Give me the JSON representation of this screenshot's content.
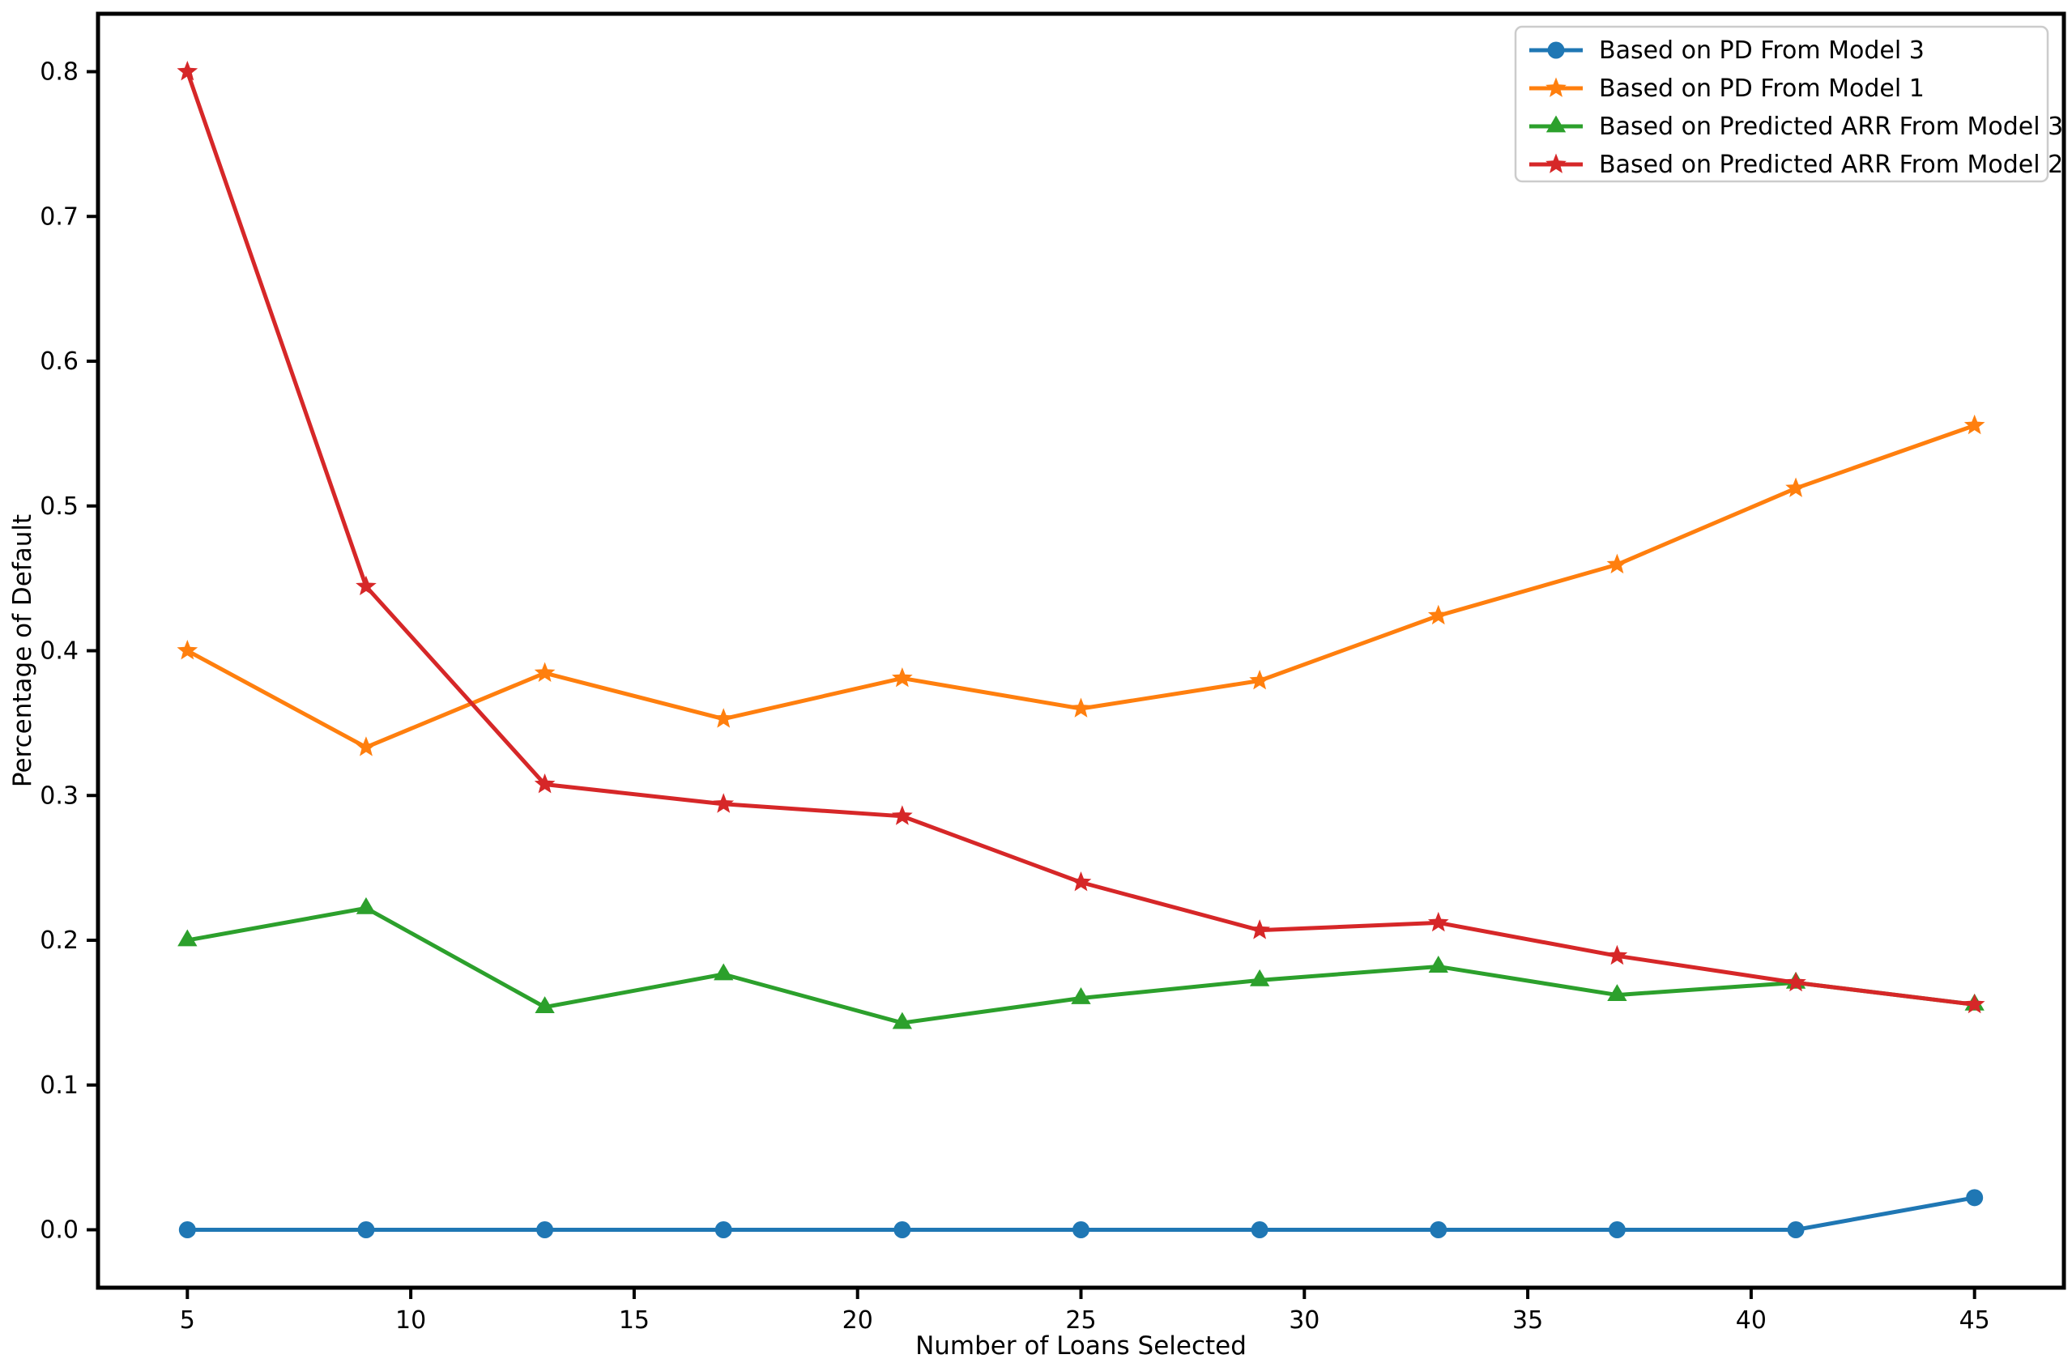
{
  "figure": {
    "background": "#ffffff"
  },
  "chart_data": {
    "type": "line",
    "title": "",
    "xlabel": "Number of Loans Selected",
    "ylabel": "Percentage of Default",
    "x": [
      5,
      9,
      13,
      17,
      21,
      25,
      29,
      33,
      37,
      41,
      45
    ],
    "series": [
      {
        "name": "Based on PD From Model 3",
        "color": "#1f77b4",
        "marker": "circle",
        "values": [
          0.0,
          0.0,
          0.0,
          0.0,
          0.0,
          0.0,
          0.0,
          0.0,
          0.0,
          0.0,
          0.0222
        ]
      },
      {
        "name": "Based on PD From Model 1",
        "color": "#ff7f0e",
        "marker": "star",
        "values": [
          0.4,
          0.3333,
          0.3846,
          0.3529,
          0.381,
          0.36,
          0.3793,
          0.4242,
          0.4595,
          0.5122,
          0.5556
        ]
      },
      {
        "name": "Based on Predicted ARR From Model 3",
        "color": "#2ca02c",
        "marker": "triangle-up",
        "values": [
          0.2,
          0.2222,
          0.1538,
          0.1765,
          0.1429,
          0.16,
          0.1724,
          0.1818,
          0.1622,
          0.1707,
          0.1556
        ]
      },
      {
        "name": "Based on Predicted ARR From Model 2",
        "color": "#d62728",
        "marker": "star",
        "values": [
          0.8,
          0.4444,
          0.3077,
          0.2941,
          0.2857,
          0.24,
          0.2069,
          0.2121,
          0.1892,
          0.1707,
          0.1556
        ]
      }
    ],
    "xtick_labels": [
      "5",
      "10",
      "15",
      "20",
      "25",
      "30",
      "35",
      "40",
      "45"
    ],
    "xticks": [
      5,
      10,
      15,
      20,
      25,
      30,
      35,
      40,
      45
    ],
    "ytick_labels": [
      "0.0",
      "0.1",
      "0.2",
      "0.3",
      "0.4",
      "0.5",
      "0.6",
      "0.7",
      "0.8"
    ],
    "yticks": [
      0.0,
      0.1,
      0.2,
      0.3,
      0.4,
      0.5,
      0.6,
      0.7,
      0.8
    ],
    "xlim": [
      3,
      47
    ],
    "ylim": [
      -0.04,
      0.84
    ],
    "grid": false,
    "legend_position": "upper right",
    "axis_color": "#000000",
    "legend_border_color": "#cccccc"
  }
}
